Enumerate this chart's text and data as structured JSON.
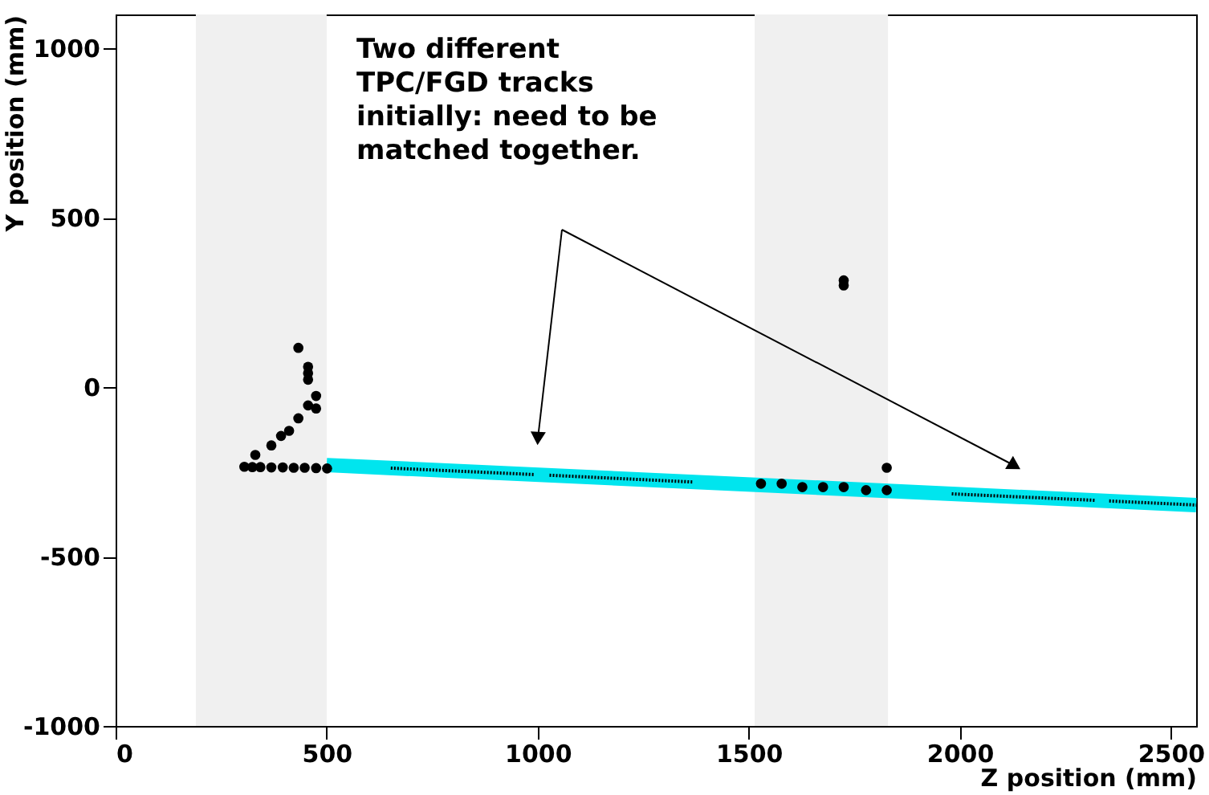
{
  "chart_data": {
    "type": "scatter",
    "xlabel": "Z position (mm)",
    "ylabel": "Y position (mm)",
    "xlim": [
      0,
      2560
    ],
    "ylim": [
      -1000,
      1100
    ],
    "xticks": [
      0,
      500,
      1000,
      1500,
      2000,
      2500
    ],
    "yticks": [
      -1000,
      -500,
      0,
      500,
      1000
    ],
    "grid": false,
    "bands": [
      {
        "axis": "x",
        "from": 190,
        "to": 500,
        "color": "#f0f0f0"
      },
      {
        "axis": "x",
        "from": 1514,
        "to": 1830,
        "color": "#f0f0f0"
      }
    ],
    "series": [
      {
        "type": "line",
        "color": "#00e5ee",
        "x": [
          500,
          2560
        ],
        "values": [
          -230,
          -348
        ]
      },
      {
        "type": "line",
        "color": "#000000",
        "line_style": "dotted",
        "x": [
          652,
          991,
          null,
          1028,
          1367,
          null,
          1981,
          2320,
          null,
          2354,
          2560
        ],
        "values": [
          -239,
          -258,
          null,
          -260,
          -280,
          null,
          -315,
          -334,
          null,
          -336,
          -348
        ]
      },
      {
        "marker": "circle",
        "color": "#000000",
        "x": [
          305,
          324,
          343,
          369,
          396,
          422,
          448,
          475,
          501,
          331,
          369,
          392,
          411,
          433,
          456,
          475,
          475,
          456,
          456,
          456,
          433,
          1529,
          1578,
          1627,
          1676,
          1725,
          1778,
          1827,
          1827,
          1725,
          1725
        ],
        "values": [
          -235,
          -236,
          -236,
          -237,
          -237,
          -238,
          -238,
          -239,
          -240,
          -200,
          -172,
          -144,
          -129,
          -92,
          -54,
          -63,
          -26,
          22,
          41,
          60,
          116,
          -285,
          -285,
          -295,
          -295,
          -295,
          -304,
          -304,
          -238,
          300,
          315
        ]
      }
    ],
    "annotations": [
      "Two different\nTPC/FGD tracks\ninitially: need to be\nmatched together."
    ]
  }
}
